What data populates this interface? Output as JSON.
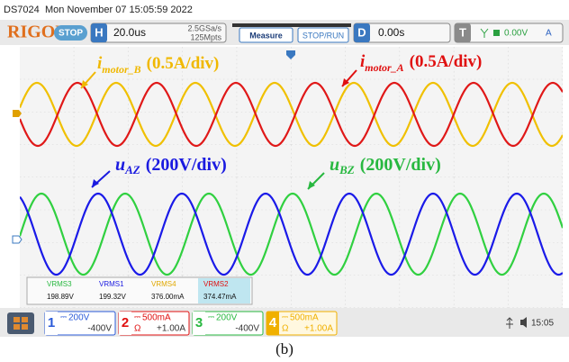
{
  "header": {
    "model": "DS7024",
    "datetime": "Mon November 07 15:05:59 2022"
  },
  "toolbar": {
    "brand": "RIGOL",
    "state": "STOP",
    "horizontal": {
      "key": "H",
      "timebase": "20.0us",
      "sample_rate": "2.5GSa/s",
      "memory_depth": "125Mpts"
    },
    "buttons": [
      "Measure",
      "STOP/RUN"
    ],
    "delay": {
      "key": "D",
      "value": "0.00s"
    },
    "trigger": {
      "key": "T",
      "level": "0.00V",
      "source": "A"
    }
  },
  "annotations": [
    {
      "symbol": "i",
      "subscript": "motor_B",
      "scale": "(0.5A/div)"
    },
    {
      "symbol": "i",
      "subscript": "motor_A",
      "scale": "(0.5A/div)"
    },
    {
      "symbol": "u",
      "subscript": "AZ",
      "scale": "(200V/div)"
    },
    {
      "symbol": "u",
      "subscript": "BZ",
      "scale": "(200V/div)"
    }
  ],
  "measurements": [
    {
      "label": "VRMS3",
      "value": "198.89V"
    },
    {
      "label": "VRMS1",
      "value": "199.32V"
    },
    {
      "label": "VRMS4",
      "value": "376.00mA"
    },
    {
      "label": "VRMS2",
      "value": "374.47mA"
    }
  ],
  "channels": [
    {
      "number": "1",
      "scale": "200V",
      "offset": "-400V"
    },
    {
      "number": "2",
      "scale": "500mA",
      "unit": "Ω",
      "offset": "+1.00A"
    },
    {
      "number": "3",
      "scale": "200V",
      "offset": "-400V"
    },
    {
      "number": "4",
      "scale": "500mA",
      "unit": "Ω",
      "offset": "+1.00A"
    }
  ],
  "clock": "15:05",
  "caption": "(b)"
}
